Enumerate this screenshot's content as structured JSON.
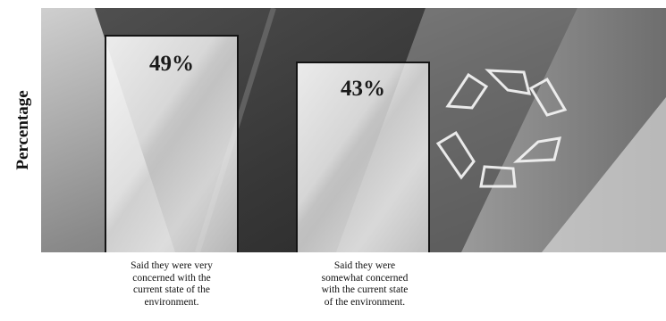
{
  "chart_data": {
    "type": "bar",
    "ylabel": "Percentage",
    "xlabel": "",
    "title": "",
    "ylim": [
      0,
      55
    ],
    "categories": [
      [
        "Said they were very",
        "concerned with the",
        "current state of the",
        "environment."
      ],
      [
        "Said they were",
        "somewhat concerned",
        "with the current state",
        "of the environment."
      ]
    ],
    "values": [
      49,
      43
    ],
    "value_labels": [
      "49%",
      "43%"
    ],
    "bar_fill": "#e6e6e6",
    "bar_border": "#141414",
    "background": "grayscale photo with recycling symbol"
  }
}
